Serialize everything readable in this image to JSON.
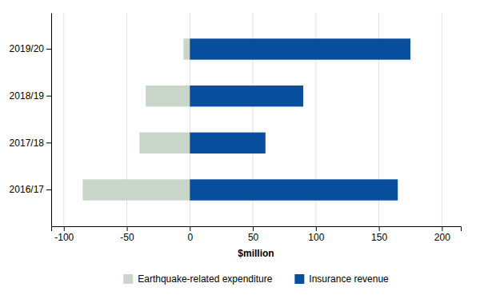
{
  "chart_data": {
    "type": "bar",
    "orientation": "horizontal",
    "categories": [
      "2016/17",
      "2017/18",
      "2018/19",
      "2019/20"
    ],
    "series": [
      {
        "name": "Earthquake-related expenditure",
        "color": "#c8d5c8",
        "values": [
          -85,
          -40,
          -35,
          -5
        ]
      },
      {
        "name": "Insurance revenue",
        "color": "#0a4f9e",
        "values": [
          165,
          60,
          90,
          175
        ]
      }
    ],
    "xlabel": "$million",
    "xlim": [
      -110,
      215
    ],
    "xticks": [
      -100,
      -50,
      0,
      50,
      100,
      150,
      200
    ],
    "grid": true,
    "legend": "bottom"
  }
}
